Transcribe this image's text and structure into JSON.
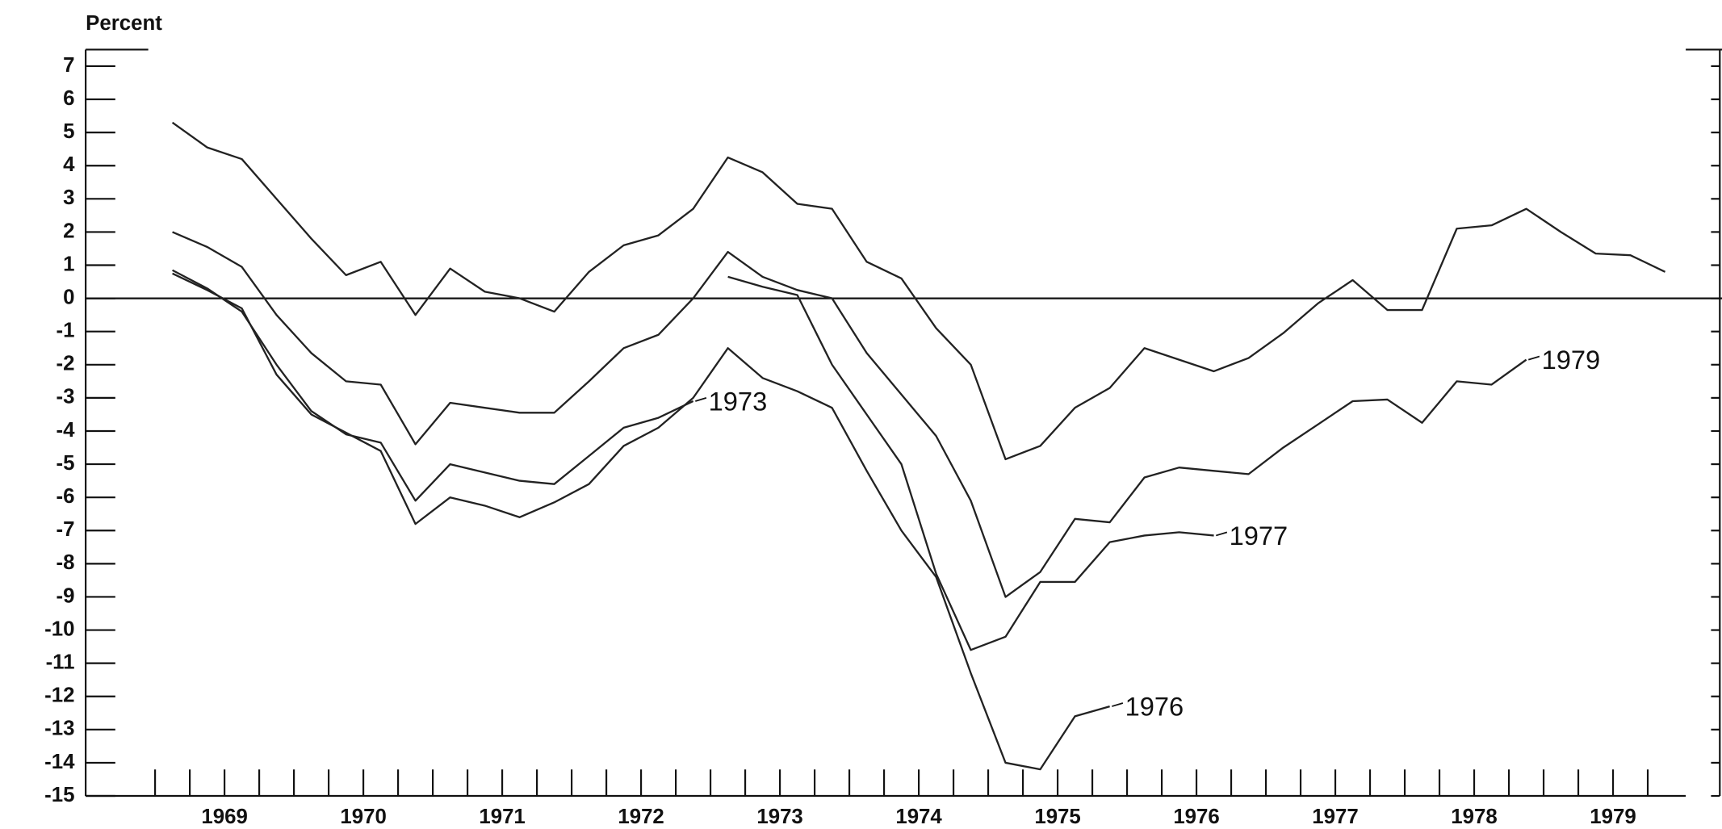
{
  "chart_data": {
    "type": "line",
    "ylabel": "Percent",
    "xlim": [
      1968.5,
      1980
    ],
    "ylim": [
      -15,
      7
    ],
    "yticks": [
      7,
      6,
      5,
      4,
      3,
      2,
      1,
      0,
      -1,
      -2,
      -3,
      -4,
      -5,
      -6,
      -7,
      -8,
      -9,
      -10,
      -11,
      -12,
      -13,
      -14,
      -15
    ],
    "xticks": [
      {
        "value": 1969.5,
        "label": "1969"
      },
      {
        "value": 1970.5,
        "label": "1970"
      },
      {
        "value": 1971.5,
        "label": "1971"
      },
      {
        "value": 1972.5,
        "label": "1972"
      },
      {
        "value": 1973.5,
        "label": "1973"
      },
      {
        "value": 1974.5,
        "label": "1974"
      },
      {
        "value": 1975.5,
        "label": "1975"
      },
      {
        "value": 1976.5,
        "label": "1976"
      },
      {
        "value": 1977.5,
        "label": "1977"
      },
      {
        "value": 1978.5,
        "label": "1978"
      },
      {
        "value": 1979.5,
        "label": "1979"
      }
    ],
    "xminor": [
      1969,
      1969.25,
      1969.5,
      1969.75,
      1970,
      1970.25,
      1970.5,
      1970.75,
      1971,
      1971.25,
      1971.5,
      1971.75,
      1972,
      1972.25,
      1972.5,
      1972.75,
      1973,
      1973.25,
      1973.5,
      1973.75,
      1974,
      1974.25,
      1974.5,
      1974.75,
      1975,
      1975.25,
      1975.5,
      1975.75,
      1976,
      1976.25,
      1976.5,
      1976.75,
      1977,
      1977.25,
      1977.5,
      1977.75,
      1978,
      1978.25,
      1978.5,
      1978.75,
      1979,
      1979.25,
      1979.5,
      1979.75
    ],
    "series": [
      {
        "color": "#222222",
        "x": [
          1969.125,
          1969.375,
          1969.625,
          1969.875,
          1970.125,
          1970.375,
          1970.625,
          1970.875,
          1971.125,
          1971.375,
          1971.625,
          1971.875,
          1972.125,
          1972.375,
          1972.625,
          1972.875,
          1973.125,
          1973.375,
          1973.625,
          1973.875,
          1974.125,
          1974.375,
          1974.625,
          1974.875,
          1975.125,
          1975.375,
          1975.625,
          1975.875,
          1976.125,
          1976.375,
          1976.625,
          1976.875,
          1977.125,
          1977.375,
          1977.625,
          1977.875,
          1978.125,
          1978.375,
          1978.625,
          1978.875,
          1979.125,
          1979.375,
          1979.625,
          1979.875
        ],
        "values": [
          5.3,
          4.55,
          4.2,
          3.0,
          1.8,
          0.7,
          1.1,
          -0.5,
          0.9,
          0.2,
          0,
          -0.4,
          0.8,
          1.6,
          1.9,
          2.7,
          4.25,
          3.8,
          2.85,
          2.7,
          1.1,
          0.6,
          -0.9,
          -2.0,
          -4.85,
          -4.45,
          -3.3,
          -2.7,
          -1.5,
          -1.85,
          -2.2,
          -1.8,
          -1.05,
          -0.15,
          0.55,
          -0.35,
          -0.35,
          2.1,
          2.2,
          2.7,
          2.0,
          1.35,
          1.3,
          0.8
        ]
      },
      {
        "name": "1979",
        "color": "#222222",
        "x": [
          1969.125,
          1969.375,
          1969.625,
          1969.875,
          1970.125,
          1970.375,
          1970.625,
          1970.875,
          1971.125,
          1971.375,
          1971.625,
          1971.875,
          1972.125,
          1972.375,
          1972.625,
          1972.875,
          1973.125,
          1973.375,
          1973.625,
          1973.875,
          1974.125,
          1974.375,
          1974.625,
          1974.875,
          1975.125,
          1975.375,
          1975.625,
          1975.875,
          1976.125,
          1976.375,
          1976.625,
          1976.875,
          1977.125,
          1977.375,
          1977.625,
          1977.875,
          1978.125,
          1978.375,
          1978.625,
          1978.875
        ],
        "values": [
          2.0,
          1.55,
          0.95,
          -0.5,
          -1.65,
          -2.5,
          -2.6,
          -4.4,
          -3.15,
          -3.3,
          -3.45,
          -3.45,
          -2.5,
          -1.5,
          -1.1,
          0,
          1.4,
          0.65,
          0.25,
          0,
          -1.65,
          -2.9,
          -4.15,
          -6.1,
          -9.0,
          -8.25,
          -6.65,
          -6.75,
          -5.4,
          -5.1,
          -5.2,
          -5.3,
          -4.5,
          -3.8,
          -3.1,
          -3.05,
          -3.75,
          -2.5,
          -2.6,
          -1.85
        ]
      },
      {
        "name": "1973",
        "color": "#222222",
        "x": [
          1969.125,
          1969.375,
          1969.625,
          1969.875,
          1970.125,
          1970.375,
          1970.625,
          1970.875,
          1971.125,
          1971.375,
          1971.625,
          1971.875,
          1972.125,
          1972.375,
          1972.625,
          1972.875
        ],
        "values": [
          0.85,
          0.3,
          -0.4,
          -2.0,
          -3.4,
          -4.1,
          -4.35,
          -6.1,
          -5.0,
          -5.25,
          -5.5,
          -5.6,
          -4.75,
          -3.9,
          -3.6,
          -3.1
        ]
      },
      {
        "name": "1976",
        "color": "#222222",
        "x": [
          1969.125,
          1969.375,
          1969.625,
          1969.875,
          1970.125,
          1970.375,
          1970.625,
          1970.875,
          1971.125,
          1971.375,
          1971.625,
          1971.875,
          1972.125,
          1972.375,
          1972.625,
          1972.875,
          1973.125,
          1973.375,
          1973.625,
          1973.875,
          1974.125,
          1974.375,
          1974.625,
          1974.875,
          1975.125,
          1975.375,
          1975.625,
          1975.875
        ],
        "values": [
          0.75,
          0.25,
          -0.3,
          -2.3,
          -3.5,
          -4.05,
          -4.6,
          -6.8,
          -6.0,
          -6.25,
          -6.6,
          -6.15,
          -5.6,
          -4.45,
          -3.9,
          -3.0,
          -1.5,
          -2.4,
          -2.8,
          -3.3,
          -5.2,
          -7.0,
          -8.4,
          -11.3,
          -14.0,
          -14.2,
          -12.6,
          -12.3
        ]
      },
      {
        "name": "1977",
        "color": "#222222",
        "x": [
          1973.125,
          1973.375,
          1973.625,
          1973.875,
          1974.125,
          1974.375,
          1974.625,
          1974.875,
          1975.125,
          1975.375,
          1975.625,
          1975.875,
          1976.125,
          1976.375,
          1976.625
        ],
        "values": [
          0.65,
          0.35,
          0.1,
          -2.0,
          -3.5,
          -5.0,
          -8.3,
          -10.6,
          -10.2,
          -8.55,
          -8.55,
          -7.35,
          -7.15,
          -7.05,
          -7.15
        ]
      }
    ]
  }
}
